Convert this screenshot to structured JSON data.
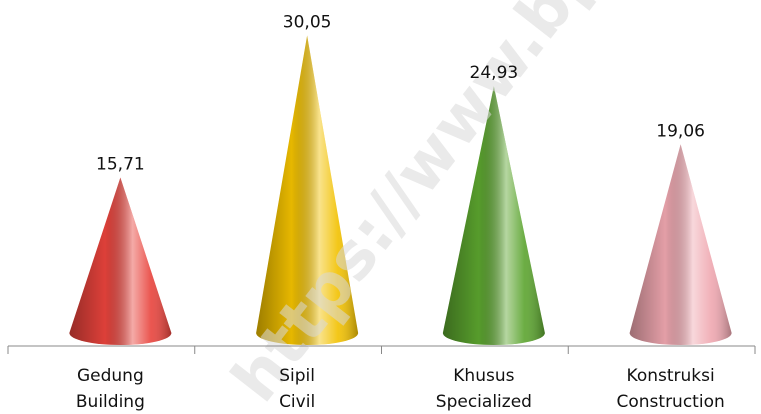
{
  "chart_data": {
    "type": "cone",
    "categories": [
      [
        "Gedung",
        "Building"
      ],
      [
        "Sipil",
        "Civil"
      ],
      [
        "Khusus",
        "Specialized"
      ],
      [
        "Konstruksi",
        "Construction"
      ]
    ],
    "values": [
      15.71,
      30.05,
      24.93,
      19.06
    ],
    "value_labels": [
      "15,71",
      "30,05",
      "24,93",
      "19,06"
    ],
    "colors": [
      "#e8433c",
      "#f2c100",
      "#5ba42e",
      "#efa7b0"
    ],
    "ylim": [
      0,
      30
    ],
    "watermark": "https://www.bps.go.id"
  }
}
